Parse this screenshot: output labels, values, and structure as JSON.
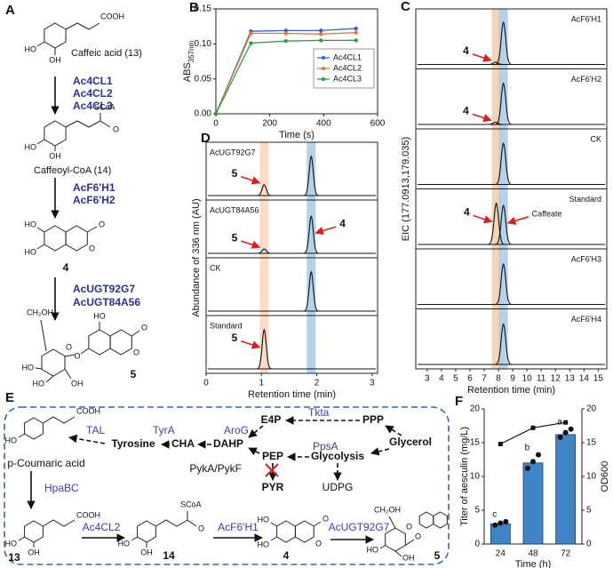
{
  "panel_a": {
    "letter": "A",
    "caffeic_acid": {
      "name": "Caffeic acid (13)",
      "atoms": [
        "COOH",
        "HO",
        "OH"
      ]
    },
    "enzymes_1": [
      "Ac4CL1",
      "Ac4CL2",
      "Ac4CL3"
    ],
    "caffeoyl_coa": {
      "name": "Caffeoyl-CoA (14)",
      "atoms": [
        "SCoA",
        "O",
        "HO",
        "OH"
      ]
    },
    "enzymes_2": [
      "AcF6'H1",
      "AcF6'H2"
    ],
    "esculetin": {
      "name": "4",
      "atoms": [
        "HO",
        "HO",
        "O",
        "O"
      ]
    },
    "enzymes_3": [
      "AcUGT92G7",
      "AcUGT84A56"
    ],
    "aesculin": {
      "name": "5",
      "atoms": [
        "HO",
        "O",
        "O",
        "O",
        "CH₂OH",
        "O",
        "HO",
        "HO",
        "OH"
      ]
    }
  },
  "chart_data": [
    {
      "type": "line",
      "panel": "B",
      "x": [
        0,
        130,
        260,
        390,
        520
      ],
      "series": [
        {
          "name": "Ac4CL1",
          "color": "#3a5fc8",
          "values": [
            0,
            0.118,
            0.119,
            0.119,
            0.122
          ]
        },
        {
          "name": "Ac4CL2",
          "color": "#e8743b",
          "values": [
            0,
            0.115,
            0.115,
            0.114,
            0.116
          ]
        },
        {
          "name": "Ac4CL3",
          "color": "#2e9a4a",
          "values": [
            0,
            0.101,
            0.104,
            0.105,
            0.105
          ]
        }
      ],
      "xlim": [
        0,
        600
      ],
      "xticks": [
        0,
        200,
        400,
        600
      ],
      "ylim": [
        0,
        0.15
      ],
      "yticks": [
        {
          "value": 0,
          "label": "0.00"
        },
        {
          "value": 0.05,
          "label": "0.05"
        },
        {
          "value": 0.1,
          "label": "0.10"
        },
        {
          "value": 0.15,
          "label": "0.15"
        }
      ],
      "x_label": "Time (s)",
      "y_label": "ABS",
      "y_label_sub": "357nm",
      "legend": "right"
    },
    {
      "type": "chromatogram",
      "panel": "C",
      "x_label": "Retention time (min)",
      "y_label": "EIC (177.0913,179.035)",
      "xlim": [
        2.2,
        15.6
      ],
      "xticks": [
        3,
        4,
        5,
        6,
        7,
        8,
        9,
        10,
        11,
        12,
        13,
        14,
        15
      ],
      "ylim": [
        0,
        1
      ],
      "highlights": [
        {
          "x": 7.85,
          "color": "#f5cba7"
        },
        {
          "x": 8.35,
          "color": "#a9c9e6"
        }
      ],
      "series": [
        {
          "name": "AcF6'H1",
          "x": [
            7.8,
            8.35
          ],
          "values": [
            0.05,
            0.92
          ],
          "peak_labels": [
            "4",
            null
          ]
        },
        {
          "name": "AcF6'H2",
          "x": [
            7.8,
            8.35
          ],
          "values": [
            0.05,
            0.9
          ],
          "peak_labels": [
            "4",
            null
          ]
        },
        {
          "name": "CK",
          "x": [
            8.35
          ],
          "values": [
            0.9
          ],
          "peak_labels": [
            null
          ]
        },
        {
          "name": "Standard",
          "x": [
            7.85,
            8.35
          ],
          "values": [
            0.9,
            0.85
          ],
          "peak_labels": [
            "4",
            "Caffeate"
          ]
        },
        {
          "name": "AcF6'H3",
          "x": [
            8.35
          ],
          "values": [
            0.88
          ],
          "peak_labels": [
            null
          ]
        },
        {
          "name": "AcF6'H4",
          "x": [
            8.35
          ],
          "values": [
            0.88
          ],
          "peak_labels": [
            null
          ]
        }
      ]
    },
    {
      "type": "chromatogram",
      "panel": "D",
      "x_label": "Retention time (min)",
      "y_label": "Abundance of 336 nm (AU)",
      "xlim": [
        0,
        3.1
      ],
      "xticks": [
        0,
        1,
        2,
        3
      ],
      "ylim": [
        0,
        1
      ],
      "highlights": [
        {
          "x": 1.05,
          "color": "#f8d5bd"
        },
        {
          "x": 1.9,
          "color": "#a9c9e6"
        }
      ],
      "series": [
        {
          "name": "AcUGT92G7",
          "x": [
            1.05,
            1.9
          ],
          "values": [
            0.25,
            0.9
          ],
          "peak_labels": [
            "5",
            null
          ]
        },
        {
          "name": "AcUGT84A56",
          "x": [
            1.05,
            1.9
          ],
          "values": [
            0.1,
            0.85
          ],
          "peak_labels": [
            "5",
            "4"
          ]
        },
        {
          "name": "CK",
          "x": [
            1.9
          ],
          "values": [
            0.9
          ],
          "peak_labels": [
            null
          ]
        },
        {
          "name": "Standard",
          "x": [
            1.05
          ],
          "values": [
            0.9
          ],
          "peak_labels": [
            "5"
          ]
        }
      ]
    },
    {
      "type": "bar",
      "panel": "F",
      "categories": [
        "24",
        "48",
        "72"
      ],
      "series": [
        {
          "type": "bar",
          "color": "#3f85c6",
          "values": [
            3,
            12,
            16.2
          ],
          "replicates": [
            [
              2.8,
              3.1,
              3.3
            ],
            [
              11.2,
              12.2,
              13.2
            ],
            [
              15.8,
              16.5,
              17.0
            ]
          ],
          "letters": [
            "c",
            "b",
            "a"
          ]
        },
        {
          "type": "line",
          "axis": "y2",
          "color": "#111111",
          "values": [
            14.8,
            17.2,
            18.0
          ]
        }
      ],
      "ylim": [
        0,
        20
      ],
      "yticks": [
        0,
        5,
        10,
        15,
        20
      ],
      "y2lim": [
        0,
        20
      ],
      "y2ticks": [
        0,
        5,
        10,
        15,
        20
      ],
      "x_label": "Time (h)",
      "y_label": "Titer of aesculin (mg/L)",
      "y2_label": "OD600"
    }
  ],
  "panel_e": {
    "letter": "E",
    "enzymes": {
      "tal": "TAL",
      "tyra": "TyrA",
      "arog": "AroG",
      "tkta": "Tkta",
      "ppsa": "PpsA",
      "hpabc": "HpaBC",
      "ac4cl2": "Ac4CL2",
      "acf6h1": "AcF6'H1",
      "acugt": "AcUGT92G7",
      "pyk": "PykA/PykF"
    },
    "metabolites": {
      "tyrosine": "Tyrosine",
      "cha": "CHA",
      "dahp": "DAHP",
      "e4p": "E4P",
      "ppp": "PPP",
      "pep": "PEP",
      "glycolysis": "Glycolysis",
      "glycerol": "Glycerol",
      "pyr": "PYR",
      "udpg": "UDPG",
      "coumaric": "p-Coumaric acid",
      "c13": "13",
      "c14": "14",
      "c4": "4",
      "c5": "5"
    },
    "atoms": {
      "coumaric": [
        "COOH",
        "HO"
      ],
      "c13": [
        "COOH",
        "HO",
        "OH"
      ],
      "c14": [
        "SCoA",
        "O",
        "HO",
        "OH"
      ],
      "c4": [
        "HO",
        "HO",
        "O",
        "O"
      ],
      "c5": [
        "CH₂OH",
        "O",
        "HO",
        "OH",
        "O"
      ]
    }
  }
}
